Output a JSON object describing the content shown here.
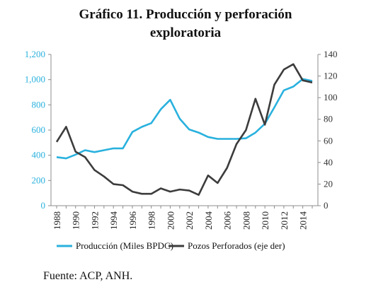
{
  "title": [
    "Gráfico 11. Producción y perforación",
    "exploratoria"
  ],
  "source": "Fuente: ACP, ANH.",
  "colors": {
    "production": "#29b1de",
    "wells": "#3c3c3c",
    "left_axis": "#29b1de",
    "right_axis": "#333333",
    "axis_line": "#8c8c8c"
  },
  "chart_data": {
    "type": "line",
    "x": [
      1988,
      1989,
      1990,
      1991,
      1992,
      1993,
      1994,
      1995,
      1996,
      1997,
      1998,
      1999,
      2000,
      2001,
      2002,
      2003,
      2004,
      2005,
      2006,
      2007,
      2008,
      2009,
      2010,
      2011,
      2012,
      2013,
      2014,
      2015
    ],
    "x_tick_labels": [
      "1988",
      "1990",
      "1992",
      "1994",
      "1996",
      "1998",
      "2000",
      "2002",
      "2004",
      "2006",
      "2008",
      "2010",
      "2012",
      "2014"
    ],
    "y_left": {
      "lim": [
        0,
        1200
      ],
      "ticks": [
        "0",
        "200",
        "400",
        "600",
        "800",
        "1,000",
        "1,200"
      ]
    },
    "y_right": {
      "lim": [
        0,
        140
      ],
      "ticks": [
        "0",
        "20",
        "40",
        "60",
        "80",
        "100",
        "120",
        "140"
      ]
    },
    "series": [
      {
        "name": "Producción (Miles BPDC)",
        "axis": "left",
        "values": [
          385,
          375,
          405,
          440,
          425,
          440,
          455,
          455,
          585,
          625,
          655,
          765,
          840,
          690,
          605,
          580,
          545,
          530,
          530,
          530,
          535,
          580,
          650,
          780,
          915,
          945,
          1005,
          990
        ]
      },
      {
        "name": "Pozos Perforados (eje der)",
        "axis": "right",
        "values": [
          59,
          73,
          50,
          45,
          33,
          27,
          20,
          19,
          13,
          11,
          11,
          16,
          13,
          15,
          14,
          10,
          28,
          21,
          35,
          57,
          70,
          99,
          75,
          112,
          126,
          131,
          116,
          114
        ]
      }
    ],
    "grid": false,
    "legend_position": "bottom"
  }
}
